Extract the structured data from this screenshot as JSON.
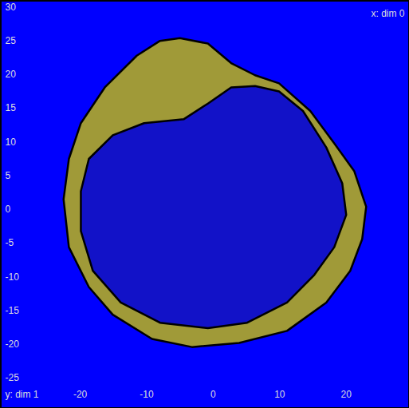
{
  "chart_data": {
    "type": "mesh",
    "xlabel": "x: dim 0",
    "ylabel": "y: dim 1",
    "color": "#0000ff",
    "xlim": [
      -32,
      29.5
    ],
    "ylim": [
      -29.5,
      31
    ],
    "xticks": [
      -20,
      -10,
      0,
      10,
      20
    ],
    "yticks": [
      -25,
      -20,
      -15,
      -10,
      -5,
      0,
      5,
      10,
      15,
      20,
      25,
      30
    ],
    "tick_labels": true,
    "regions": [
      {
        "color": "#a09a38",
        "x": [
          -5,
          -0.8,
          2.7,
          6.3,
          9.9,
          14.6,
          18.2,
          21.2,
          23,
          22.4,
          20.6,
          17,
          11.1,
          3.9,
          -3.2,
          -9.2,
          -15.1,
          -18.7,
          -21.7,
          -22.5,
          -21.7,
          -19.9,
          -16.3,
          -11.5,
          -8
        ],
        "y": [
          25.4,
          24.6,
          21.7,
          19.9,
          18.7,
          14.6,
          9.8,
          5.7,
          0.4,
          -4.4,
          -9.1,
          -13.8,
          -18,
          -19.8,
          -20.4,
          -19.2,
          -15.6,
          -11.5,
          -5.6,
          1.5,
          7.5,
          12.8,
          18.1,
          22.8,
          25
        ]
      },
      {
        "color": "#1212c8",
        "x": [
          -4.4,
          -0.8,
          2.7,
          6.3,
          9.9,
          13.5,
          17,
          19.4,
          20,
          18.2,
          15.2,
          11.1,
          5.1,
          -0.8,
          -8,
          -13.9,
          -18.1,
          -19.9,
          -19.9,
          -18.7,
          -15.1,
          -10.4
        ],
        "y": [
          13.4,
          15.7,
          18.1,
          18.3,
          17.5,
          14.6,
          9.2,
          3.9,
          -0.8,
          -5.6,
          -9.7,
          -13.8,
          -16.8,
          -17.6,
          -16.8,
          -13.8,
          -9.1,
          -3.2,
          2.7,
          7.5,
          11,
          12.8
        ]
      }
    ]
  }
}
